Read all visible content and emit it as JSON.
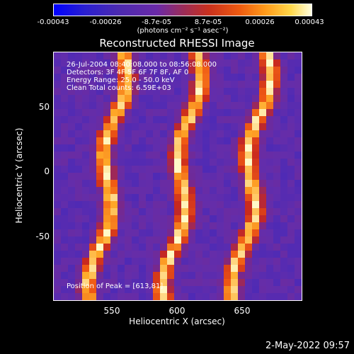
{
  "colorbar": {
    "ticks": [
      "-0.00043",
      "-0.00026",
      "-8.7e-05",
      "8.7e-05",
      "0.00026",
      "0.00043"
    ],
    "unit": "(photons cm⁻² s⁻¹ asec⁻²)"
  },
  "chart_data": {
    "type": "heatmap",
    "title": "Reconstructed RHESSI Image",
    "xlabel": "Heliocentric X (arcsec)",
    "ylabel": "Heliocentric Y (arcsec)",
    "xlim": [
      502,
      693
    ],
    "ylim": [
      -97,
      94
    ],
    "xticks": [
      "550",
      "600",
      "650"
    ],
    "yticks": [
      "50",
      "0",
      "-50"
    ],
    "annotations": [
      "26-Jul-2004 08:40:08.000 to 08:56:08.000",
      "Detectors: 3F 4F 5F 6F 7F 8F, AF 0",
      "Energy Range: 25.0 - 50.0 keV",
      "Clean    Total counts: 6.59E+03"
    ],
    "peak_label": "Position of Peak = [613,81]",
    "bright_bands_x_offsets": [
      0.22,
      0.52,
      0.8
    ],
    "colormap": [
      "#0000ff",
      "#4b2ab0",
      "#6a2aa8",
      "#c8301e",
      "#ff9a1a",
      "#ffffe0"
    ]
  },
  "footer": {
    "date": "2-May-2022 09:57"
  }
}
